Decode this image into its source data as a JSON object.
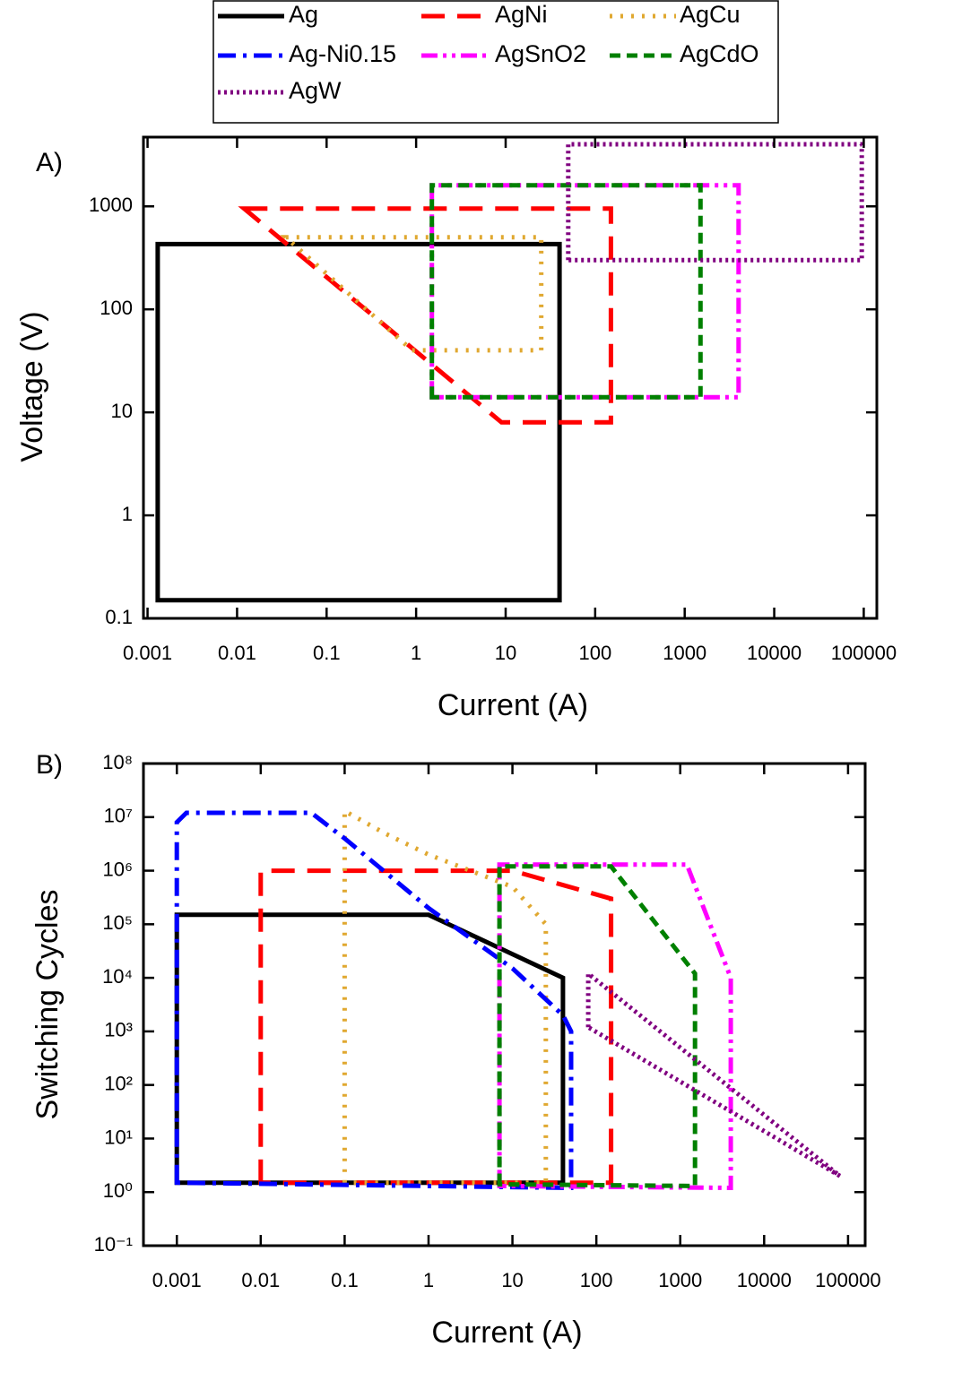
{
  "chart_data": [
    {
      "type": "line",
      "panel_label": "A)",
      "xlabel": "Current (A)",
      "ylabel": "Voltage (V)",
      "xscale": "log",
      "yscale": "log",
      "xlim": [
        0.0009,
        140000
      ],
      "ylim": [
        0.1,
        4700
      ],
      "xticks": [
        0.001,
        0.01,
        0.1,
        1,
        10,
        100,
        1000,
        10000,
        100000
      ],
      "yticks": [
        0.1,
        1,
        10,
        100,
        1000
      ],
      "series": [
        {
          "color": "#000000",
          "linestyle": "solid",
          "x": [
            0.0013,
            0.0013,
            40,
            40
          ],
          "values": [
            0.15,
            430,
            430,
            0.15
          ]
        },
        {
          "color": "#ff0000",
          "linestyle": "dashed",
          "x": [
            0.012,
            150,
            150,
            9
          ],
          "values": [
            950,
            950,
            8,
            8
          ]
        },
        {
          "color": "#e0a830",
          "linestyle": "dotted",
          "x": [
            0.035,
            25,
            25,
            0.9
          ],
          "values": [
            500,
            500,
            40,
            40
          ]
        },
        {
          "color": "#ff00ff",
          "linestyle": "dashdotdot",
          "x": [
            1.5,
            1.5,
            4000,
            4000
          ],
          "values": [
            14,
            1600,
            1600,
            14
          ]
        },
        {
          "color": "#008000",
          "linestyle": "shortdash",
          "x": [
            1.5,
            1.5,
            1500,
            1500
          ],
          "values": [
            14,
            1600,
            1600,
            14
          ]
        },
        {
          "color": "#800080",
          "linestyle": "finedot",
          "x": [
            50,
            50,
            95000,
            95000
          ],
          "values": [
            300,
            4000,
            4000,
            300
          ]
        }
      ]
    },
    {
      "type": "line",
      "panel_label": "B)",
      "xlabel": "Current (A)",
      "ylabel": "Switching Cycles",
      "xscale": "log",
      "yscale": "log",
      "xlim": [
        0.0004,
        160000
      ],
      "ylim": [
        0.1,
        100000000
      ],
      "legend": "top",
      "xticks": [
        0.001,
        0.01,
        0.1,
        1,
        10,
        100,
        1000,
        10000,
        100000
      ],
      "yticks": [
        {
          "value": 0.1,
          "label": "10⁻¹"
        },
        {
          "value": 1,
          "label": "10⁰"
        },
        {
          "value": 10,
          "label": "10¹"
        },
        {
          "value": 100,
          "label": "10²"
        },
        {
          "value": 1000,
          "label": "10³"
        },
        {
          "value": 10000,
          "label": "10⁴"
        },
        {
          "value": 100000,
          "label": "10⁵"
        },
        {
          "value": 1000000,
          "label": "10⁶"
        },
        {
          "value": 10000000,
          "label": "10⁷"
        },
        {
          "value": 100000000,
          "label": "10⁸"
        }
      ],
      "series": [
        {
          "name": "Ag",
          "color": "#000000",
          "linestyle": "solid",
          "x": [
            0.001,
            0.001,
            1,
            40,
            40
          ],
          "values": [
            1.5,
            150000,
            150000,
            10000,
            1.5
          ]
        },
        {
          "name": "AgNi",
          "color": "#ff0000",
          "linestyle": "dashed",
          "x": [
            0.01,
            0.01,
            10,
            150,
            150
          ],
          "values": [
            1.5,
            1000000,
            1000000,
            300000,
            1.5
          ]
        },
        {
          "name": "AgCu",
          "color": "#e0a830",
          "linestyle": "dotted",
          "x": [
            0.1,
            0.1,
            0.3,
            1,
            10,
            25,
            25
          ],
          "values": [
            1.5,
            13000000,
            5000000,
            2000000,
            500000,
            100000,
            1.5
          ]
        },
        {
          "name": "Ag-Ni0.15",
          "color": "#0000ff",
          "linestyle": "dashdot",
          "x": [
            0.001,
            0.001,
            0.0013,
            0.04,
            0.1,
            1,
            10,
            40,
            50,
            50
          ],
          "values": [
            1.5,
            8000000,
            12000000,
            12000000,
            4000000,
            200000,
            15000,
            2000,
            1000,
            1.2
          ]
        },
        {
          "name": "AgSnO2",
          "color": "#ff00ff",
          "linestyle": "dashdotdot",
          "x": [
            7,
            7,
            1200,
            4000,
            4000
          ],
          "values": [
            1.3,
            1300000,
            1300000,
            10000,
            1.2
          ]
        },
        {
          "name": "AgCdO",
          "color": "#008000",
          "linestyle": "shortdash",
          "x": [
            7,
            7,
            150,
            1500,
            1500
          ],
          "values": [
            1.4,
            1200000,
            1200000,
            12000,
            1.3
          ]
        },
        {
          "name": "AgW",
          "color": "#800080",
          "linestyle": "finedot",
          "x": [
            80,
            80,
            80000
          ],
          "values": [
            1200,
            12000,
            2
          ]
        }
      ]
    }
  ]
}
